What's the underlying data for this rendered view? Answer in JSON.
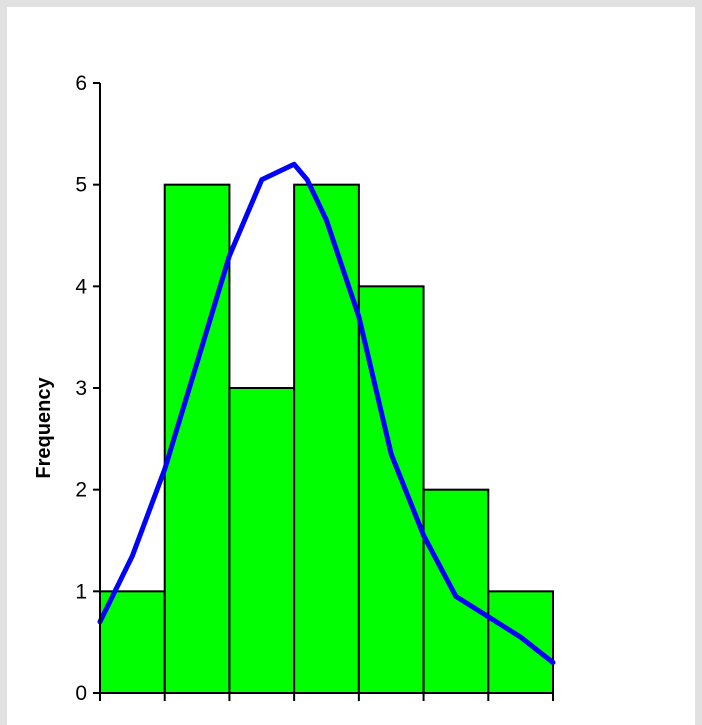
{
  "chart_data": {
    "type": "bar",
    "title": "",
    "xlabel": "",
    "ylabel": "Frequency",
    "ylim": [
      0,
      6
    ],
    "yticks": [
      "0",
      "1",
      "2",
      "3",
      "4",
      "5",
      "6"
    ],
    "categories": [
      "",
      "",
      "",
      "",
      "",
      "",
      ""
    ],
    "values": [
      1,
      5,
      3,
      5,
      4,
      2,
      1
    ],
    "grid": false,
    "legend": "none",
    "bar_color": "#00ff00",
    "bar_edge_color": "#000000",
    "curve": {
      "type": "line",
      "color": "#0000ff",
      "x": [
        0.0,
        0.5,
        1.0,
        1.5,
        2.0,
        2.5,
        3.0,
        3.2,
        3.5,
        4.0,
        4.5,
        5.0,
        5.5,
        6.0,
        6.5,
        7.0
      ],
      "y": [
        0.7,
        1.35,
        2.2,
        3.25,
        4.3,
        5.05,
        5.2,
        5.05,
        4.65,
        3.7,
        2.35,
        1.55,
        0.95,
        0.75,
        0.55,
        0.3
      ]
    }
  }
}
